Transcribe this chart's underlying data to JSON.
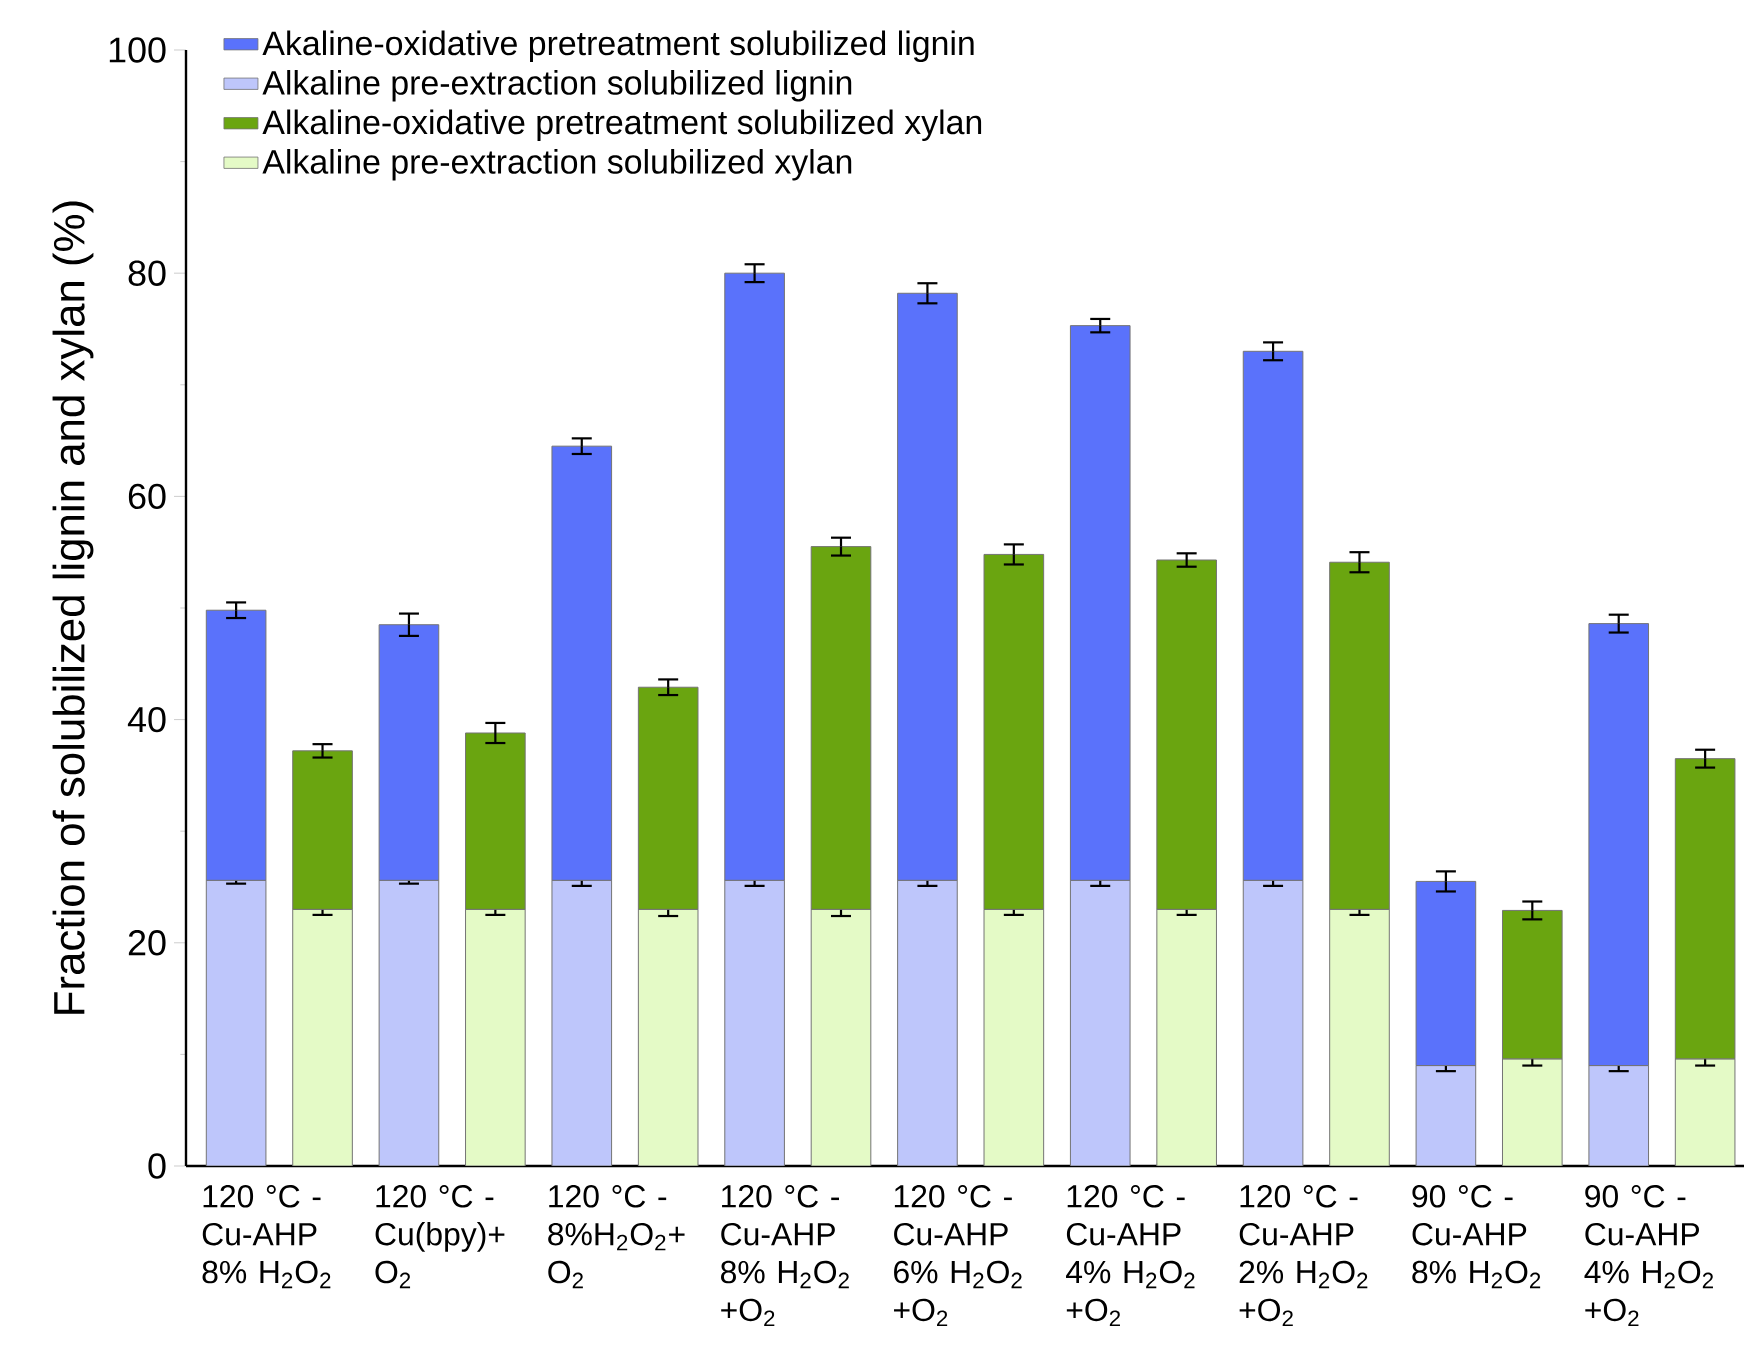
{
  "chart_data": {
    "type": "bar",
    "stacked": true,
    "ylabel": "Fraction of solubilized lignin and xylan (%)",
    "categories": [
      "120 °C - Cu-AHP 8% H$_{2}$O$_{2}$",
      null,
      "120 °C - Cu(bpy)+ O$_{2}$",
      null,
      "120 °C - 8%H$_{2}$O$_{2}$+ O$_{2}$",
      null,
      "120 °C - Cu-AHP 8% H$_{2}$O$_{2}$ +O$_{2}$",
      null,
      "120 °C - Cu-AHP 6% H$_{2}$O$_{2}$ +O$_{2}$",
      null,
      "120 °C - Cu-AHP 4% H$_{2}$O$_{2}$ +O$_{2}$",
      null,
      "120 °C - Cu-AHP 2% H$_{2}$O$_{2}$ +O$_{2}$",
      null,
      "90 °C - Cu-AHP 8% H$_{2}$O$_{2}$",
      null,
      "90 °C - Cu-AHP 4% H$_{2}$O$_{2}$ +O$_{2}$",
      null
    ],
    "series": [
      {
        "name": "Alkaline pre-extraction solubilized lignin",
        "color": "#bec6fb",
        "values": [
          25.6,
          null,
          25.6,
          null,
          25.6,
          null,
          25.6,
          null,
          25.6,
          null,
          25.6,
          null,
          25.6,
          null,
          9.0,
          null,
          9.0,
          null
        ],
        "errors": [
          0.3,
          null,
          0.3,
          null,
          0.5,
          null,
          0.5,
          null,
          0.5,
          null,
          0.5,
          null,
          0.5,
          null,
          0.5,
          null,
          0.5,
          null
        ]
      },
      {
        "name": "Akaline-oxidative pretreatment solubilized lignin",
        "color": "#5a72fb",
        "values": [
          24.2,
          null,
          22.9,
          null,
          38.9,
          null,
          54.4,
          null,
          52.6,
          null,
          49.7,
          null,
          47.4,
          null,
          16.5,
          null,
          39.6,
          null
        ],
        "errors": [
          0.7,
          null,
          1.0,
          null,
          0.7,
          null,
          0.8,
          null,
          0.9,
          null,
          0.6,
          null,
          0.8,
          null,
          0.9,
          null,
          0.8,
          null
        ]
      },
      {
        "name": "Alkaline pre-extraction solubilized xylan",
        "color": "#e4fac6",
        "values": [
          null,
          23.0,
          null,
          23.0,
          null,
          23.0,
          null,
          23.0,
          null,
          23.0,
          null,
          23.0,
          null,
          23.0,
          null,
          9.6,
          null,
          9.6
        ],
        "errors": [
          null,
          0.5,
          null,
          0.5,
          null,
          0.6,
          null,
          0.6,
          null,
          0.5,
          null,
          0.5,
          null,
          0.5,
          null,
          0.6,
          null,
          0.6
        ]
      },
      {
        "name": "Alkaline-oxidative pretreatment solubilized xylan",
        "color": "#6aa510",
        "values": [
          null,
          14.2,
          null,
          15.8,
          null,
          19.9,
          null,
          32.5,
          null,
          31.8,
          null,
          31.3,
          null,
          31.1,
          null,
          13.3,
          null,
          26.9
        ],
        "errors": [
          null,
          0.6,
          null,
          0.9,
          null,
          0.7,
          null,
          0.8,
          null,
          0.9,
          null,
          0.6,
          null,
          0.9,
          null,
          0.8,
          null,
          0.8
        ]
      }
    ],
    "ylim": [
      0,
      100
    ],
    "yticks": [
      0,
      20,
      40,
      60,
      80,
      100
    ],
    "legend": "top left"
  }
}
